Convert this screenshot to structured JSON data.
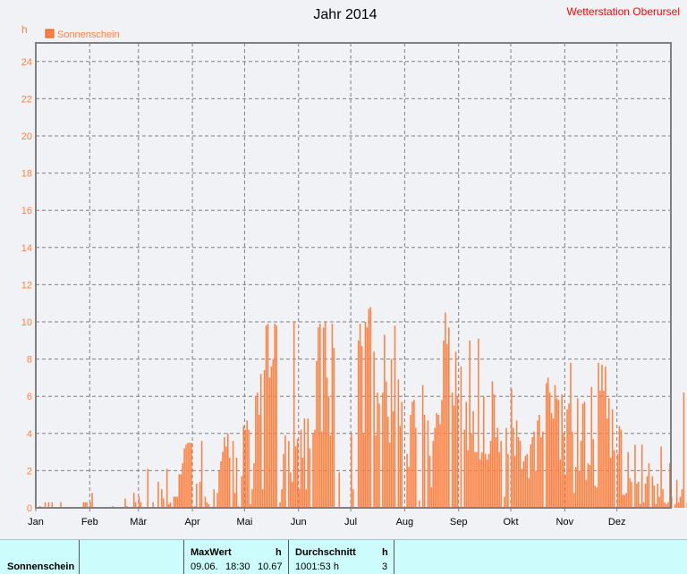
{
  "page": {
    "title": "Jahr 2014",
    "station": "Wetterstation Oberursel",
    "unit": "h"
  },
  "colors": {
    "bar": "#ff8040",
    "bar_edge": "#d06020",
    "axis_text": "#ff8040",
    "station_text": "#ff0000",
    "plot_bg": "#f0f2f5",
    "grid": "#808080"
  },
  "chart_data": {
    "type": "bar",
    "title": "Jahr 2014",
    "ylabel": "h",
    "ylim": [
      0,
      25
    ],
    "y_ticks": [
      0,
      2,
      4,
      6,
      8,
      10,
      12,
      14,
      16,
      18,
      20,
      22,
      24
    ],
    "x_ticks": [
      "Jan",
      "Feb",
      "Mär",
      "Apr",
      "Mai",
      "Jun",
      "Jul",
      "Aug",
      "Sep",
      "Okt",
      "Nov",
      "Dez"
    ],
    "grid": true,
    "legend_position": "top-left",
    "series": [
      {
        "name": "Sonnenschein",
        "x_start": "2014-01-01",
        "values": [
          0,
          0,
          0.1,
          0,
          0,
          0.3,
          0,
          0.3,
          0,
          0.3,
          0,
          0,
          0,
          0,
          0.3,
          0,
          0,
          0,
          0,
          0,
          0,
          0,
          0,
          0,
          0,
          0,
          0,
          0.3,
          0.3,
          0.3,
          0,
          0.3,
          0.8,
          0,
          0,
          0,
          0,
          0,
          0,
          0,
          0,
          0,
          0,
          0,
          0.1,
          0,
          0,
          0,
          0,
          0,
          0,
          0.5,
          0.1,
          0,
          0,
          0,
          0.8,
          0.3,
          0,
          0.6,
          0.3,
          0,
          0,
          0,
          2.1,
          0,
          0,
          0.3,
          0,
          0,
          1.4,
          0,
          1.0,
          0.5,
          0,
          2.1,
          0.2,
          0.3,
          0,
          0.6,
          0.6,
          0.6,
          1.8,
          1.8,
          2.4,
          3.2,
          3.4,
          3.5,
          3.5,
          3.5,
          0,
          0.1,
          1.3,
          0,
          1.4,
          3.6,
          0,
          0.6,
          0.3,
          0.2,
          0,
          0,
          1.0,
          0,
          0.8,
          2.0,
          2.5,
          3.0,
          3.8,
          3.3,
          4.0,
          2.7,
          0,
          3.6,
          0.8,
          2.7,
          0.1,
          0,
          1.7,
          4.4,
          4.2,
          4.7,
          4.2,
          0.2,
          1.0,
          2.4,
          6.0,
          6.2,
          5.0,
          7.2,
          1.0,
          7.4,
          9.8,
          9.9,
          7.0,
          7.6,
          8.0,
          9.9,
          9.8,
          0,
          0.3,
          1.0,
          2.9,
          3.9,
          0,
          3.6,
          1.9,
          1.4,
          10.0,
          3.3,
          3.7,
          1.0,
          4.2,
          2.7,
          4.8,
          1.0,
          4.8,
          3.2,
          0,
          4.0,
          4.2,
          7.9,
          9.7,
          9.9,
          4.1,
          9.7,
          10.0,
          7.0,
          6.0,
          3.9,
          9.9,
          8.6,
          0,
          0,
          1.9,
          0,
          0,
          0,
          0,
          0,
          0,
          4.0,
          1.0,
          0,
          0,
          9.0,
          9.9,
          8.7,
          4.0,
          10.0,
          9.7,
          10.7,
          10.8,
          0,
          8.4,
          3.9,
          6.2,
          5.6,
          0,
          6.2,
          9.3,
          6.8,
          4.9,
          3.5,
          8.0,
          5.2,
          9.8,
          0,
          6.9,
          4.4,
          5.7,
          0,
          0,
          2.9,
          2.2,
          5.0,
          5.7,
          5.8,
          4.3,
          0,
          0.4,
          0,
          6.6,
          5.0,
          0,
          4.7,
          2.8,
          1.1,
          3.6,
          4.3,
          5.1,
          5.0,
          4.5,
          5.8,
          9.0,
          10.5,
          8.8,
          9.7,
          0,
          6.2,
          5.5,
          8.4,
          6.0,
          0,
          7.6,
          0,
          4.2,
          5.7,
          3.1,
          9.0,
          4.0,
          5.2,
          3.0,
          3.0,
          9.1,
          2.6,
          3.0,
          6.0,
          2.9,
          2.6,
          2.9,
          3.6,
          6.8,
          6.1,
          3.8,
          4.3,
          3.0,
          3.6,
          0,
          0.6,
          4.3,
          2.9,
          0,
          6.4,
          4.3,
          2.8,
          4.7,
          3.8,
          3.6,
          2.1,
          2.5,
          2.8,
          2.9,
          1.6,
          3.4,
          3.8,
          4.1,
          2.0,
          4.7,
          5.0,
          3.8,
          4.1,
          0,
          6.7,
          7.0,
          6.2,
          5.1,
          4.8,
          6.6,
          5.9,
          5.8,
          2.6,
          6.1,
          4.0,
          1.8,
          5.3,
          5.6,
          7.8,
          4.1,
          0.8,
          2.2,
          5.9,
          2.0,
          3.6,
          5.6,
          5.7,
          1.5,
          2.4,
          2.3,
          6.5,
          3.7,
          1.2,
          1.1,
          7.8,
          6.3,
          7.7,
          6.3,
          7.6,
          4.8,
          5.9,
          2.7,
          5.3,
          3.1,
          0,
          2.9,
          4.4,
          4.2,
          0.7,
          0.7,
          0.8,
          3.0,
          1.6,
          1.4,
          0,
          3.4,
          1.3,
          1.4,
          0.2,
          3.4,
          0.3,
          1.3,
          1.7,
          2.4,
          0,
          1.7,
          1.2,
          0.2,
          1.3,
          0.6,
          3.3,
          1.0,
          0.3,
          0.2,
          0.3,
          2.4,
          0.6,
          0,
          0.2,
          1.5,
          0.3,
          0.6,
          1.0,
          6.2,
          0,
          0.3,
          1.8,
          0.3,
          0,
          0,
          0.6,
          0.1,
          1.5,
          0.1,
          0,
          1.2,
          0,
          0,
          1.0,
          0,
          0,
          0.3,
          0,
          0.1,
          0,
          0,
          0,
          0,
          0.4,
          0,
          0,
          0,
          0,
          0.2,
          0.7,
          1.4,
          0.8,
          2.3,
          0.5,
          0.9,
          1.2,
          0.3,
          0.5,
          0,
          1.0,
          0.2,
          0,
          0,
          0,
          0,
          0,
          0,
          0,
          0,
          0,
          0.5,
          0,
          0,
          0,
          0,
          0,
          0,
          0,
          0,
          0,
          0,
          0,
          0,
          0,
          0,
          0,
          0,
          0,
          0,
          0,
          0,
          0.5,
          0.1,
          0,
          0.8,
          0.3,
          0.6,
          0.1,
          0,
          0,
          0,
          0
        ]
      }
    ]
  },
  "footer": {
    "row_label": "Sonnenschein",
    "max_header": "MaxWert",
    "max_unit": "h",
    "max_date": "09.06.",
    "max_time": "18:30",
    "max_value": "10.67",
    "avg_header": "Durchschnitt",
    "avg_unit": "h",
    "avg_value": "1001:53 h",
    "avg_count": "3"
  }
}
